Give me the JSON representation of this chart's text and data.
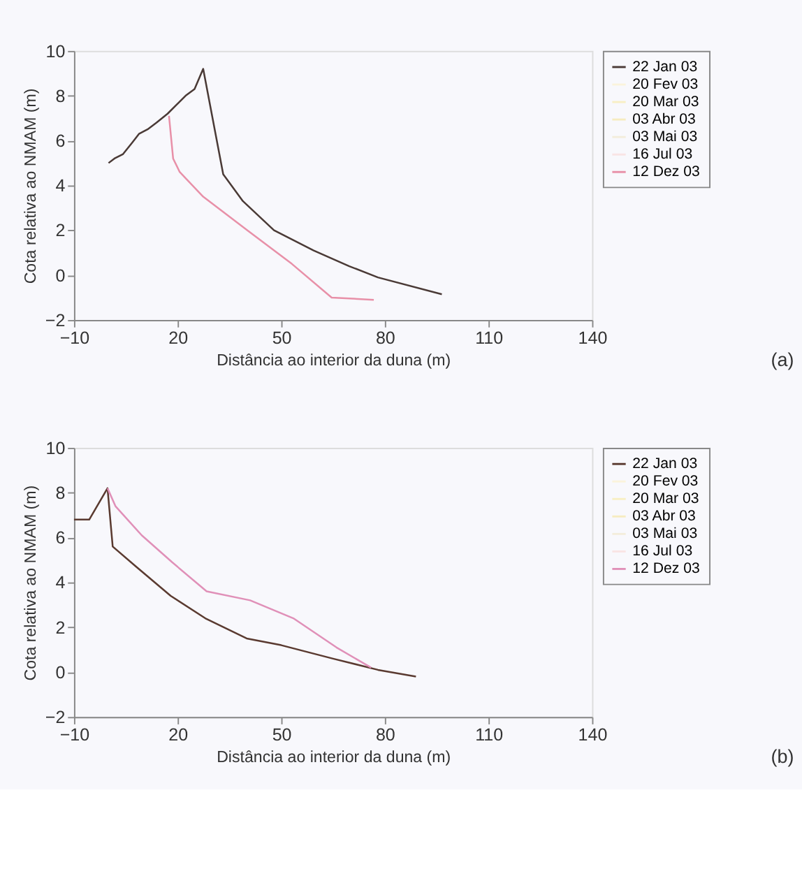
{
  "chart_data": [
    {
      "type": "line",
      "xlabel": "Distância ao interior da duna (m)",
      "ylabel": "Cota relativa ao NMAM (m)",
      "xlim": [
        -10,
        140
      ],
      "xticks": [
        -10,
        20,
        50,
        80,
        110,
        140
      ],
      "ylim": [
        -2,
        10
      ],
      "yticks": [
        -2,
        0,
        2,
        4,
        6,
        8,
        10
      ],
      "grid": false,
      "legend": "right",
      "annotations": [
        "(a)"
      ],
      "series": [
        {
          "name": "22 Jan 03",
          "color": "#4a3a36",
          "x": [
            0,
            1.7,
            4.2,
            6.8,
            8.8,
            11.3,
            13.9,
            17.1,
            19.7,
            22.3,
            24.9,
            27.4,
            33.2,
            38.9,
            47.9,
            59.4,
            69.7,
            78,
            96.5
          ],
          "values": [
            5.0,
            5.2,
            5.4,
            5.9,
            6.3,
            6.5,
            6.8,
            7.2,
            7.6,
            8.0,
            8.3,
            9.2,
            4.5,
            3.3,
            2.0,
            1.1,
            0.4,
            -0.1,
            -0.85
          ]
        },
        {
          "name": "20 Fev 03",
          "color": "#fbf3dc"
        },
        {
          "name": "20 Mar 03",
          "color": "#f8efc4"
        },
        {
          "name": "03 Abr 03",
          "color": "#f6ecc0"
        },
        {
          "name": "03 Mai 03",
          "color": "#f3eddb"
        },
        {
          "name": "16 Jul 03",
          "color": "#f9e4e4"
        },
        {
          "name": "12 Dez 03",
          "color": "#e890a8",
          "x": [
            17.5,
            18.7,
            20.6,
            27.4,
            40.2,
            53.1,
            64.6,
            76.8
          ],
          "values": [
            7.1,
            5.2,
            4.6,
            3.5,
            2.0,
            0.5,
            -1.0,
            -1.1
          ]
        }
      ]
    },
    {
      "type": "line",
      "xlabel": "Distância ao interior da duna (m)",
      "ylabel": "Cota relativa ao NMAM (m)",
      "xlim": [
        -10,
        140
      ],
      "xticks": [
        -10,
        20,
        50,
        80,
        110,
        140
      ],
      "ylim": [
        -2,
        10
      ],
      "yticks": [
        -2,
        0,
        2,
        4,
        6,
        8,
        10
      ],
      "grid": false,
      "legend": "right",
      "annotations": [
        "(b)"
      ],
      "series": [
        {
          "name": "22 Jan 03",
          "color": "#5a3a30",
          "x": [
            -10,
            -5.6,
            -0.3,
            1.2,
            8,
            18,
            28,
            40,
            50,
            65,
            78,
            89
          ],
          "values": [
            6.8,
            6.8,
            8.2,
            5.6,
            4.7,
            3.4,
            2.4,
            1.5,
            1.2,
            0.6,
            0.1,
            -0.2
          ]
        },
        {
          "name": "20 Fev 03",
          "color": "#fbf3dc"
        },
        {
          "name": "20 Mar 03",
          "color": "#f8efc4"
        },
        {
          "name": "03 Abr 03",
          "color": "#f6ecc0"
        },
        {
          "name": "03 Mai 03",
          "color": "#f3eddb"
        },
        {
          "name": "16 Jul 03",
          "color": "#f9e4e4"
        },
        {
          "name": "12 Dez 03",
          "color": "#e090b8",
          "x": [
            -0.3,
            2.0,
            9.6,
            18.4,
            28.4,
            41,
            53.5,
            66,
            76
          ],
          "values": [
            8.2,
            7.4,
            6.1,
            4.9,
            3.6,
            3.2,
            2.4,
            1.1,
            0.2
          ]
        }
      ]
    }
  ]
}
